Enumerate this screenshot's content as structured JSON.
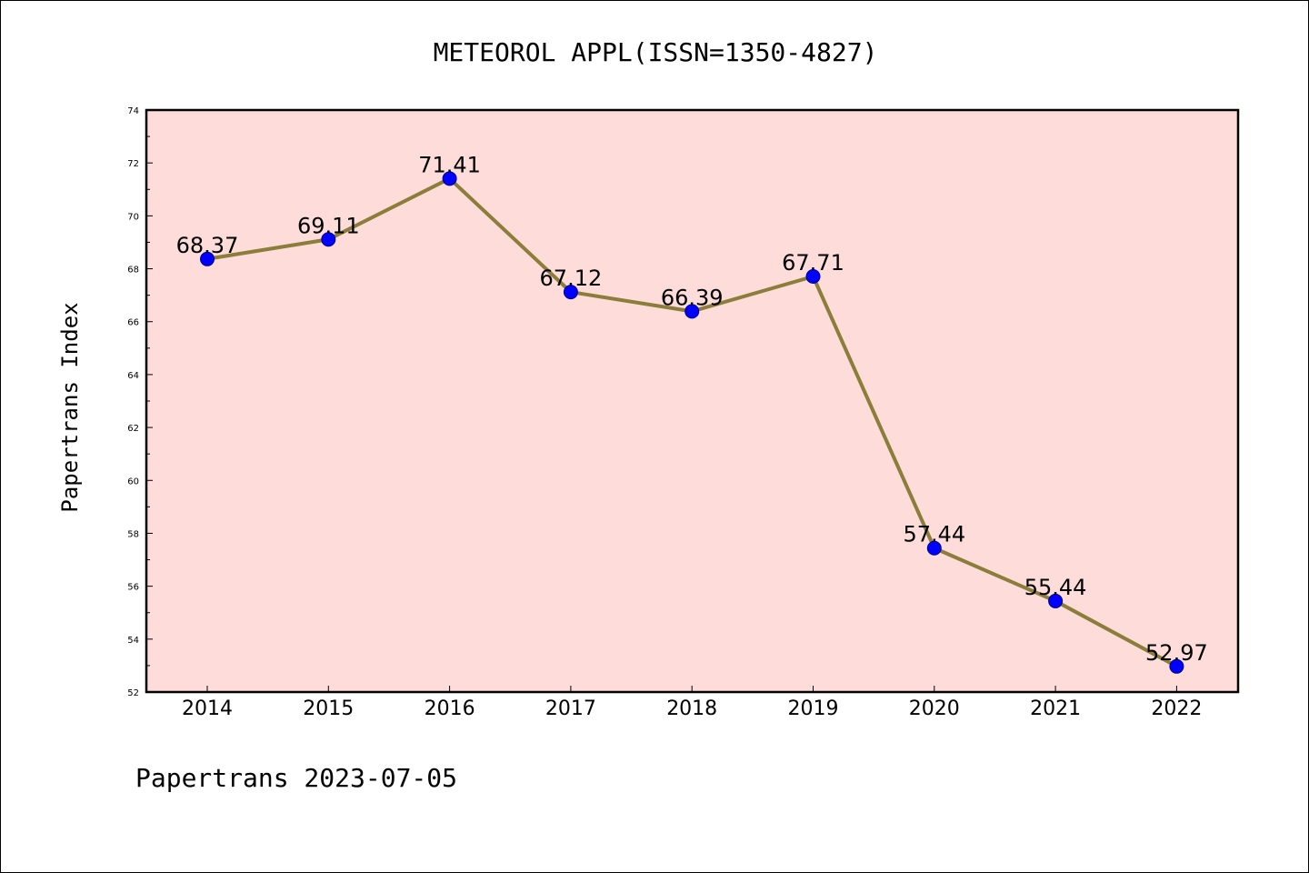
{
  "chart_data": {
    "type": "line",
    "title": "METEOROL APPL(ISSN=1350-4827)",
    "ylabel": "Papertrans Index",
    "xlabel": "",
    "footer": "Papertrans 2023-07-05",
    "categories": [
      "2014",
      "2015",
      "2016",
      "2017",
      "2018",
      "2019",
      "2020",
      "2021",
      "2022"
    ],
    "values": [
      68.37,
      69.11,
      71.41,
      67.12,
      66.39,
      67.71,
      57.44,
      55.44,
      52.97
    ],
    "data_labels": [
      "68.37",
      "69.11",
      "71.41",
      "67.12",
      "66.39",
      "67.71",
      "57.44",
      "55.44",
      "52.97"
    ],
    "ylim": [
      52,
      74
    ],
    "yticks": [
      52,
      54,
      56,
      58,
      60,
      62,
      64,
      66,
      68,
      70,
      72,
      74
    ],
    "grid": false,
    "colors": {
      "plot_background": "#fddcda",
      "line": "#8b7d3a",
      "marker": "#0000ff",
      "marker_edge": "#00008b"
    }
  }
}
